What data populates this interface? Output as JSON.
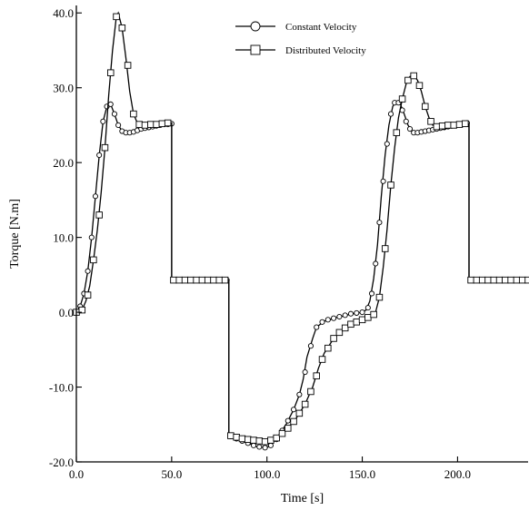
{
  "chart_data": {
    "type": "line",
    "title": "",
    "xlabel": "Time [s]",
    "ylabel": "Torque [N.m]",
    "xlim": [
      0,
      237
    ],
    "ylim": [
      -20,
      41
    ],
    "x_ticks": [
      0,
      50,
      100,
      150,
      200
    ],
    "x_tick_labels": [
      "0.0",
      "50.0",
      "100.0",
      "150.0",
      "200.0"
    ],
    "y_ticks": [
      -20,
      -10,
      0,
      10,
      20,
      30,
      40
    ],
    "y_tick_labels": [
      "-20.0",
      "-10.0",
      "0.0",
      "10.0",
      "20.0",
      "30.0",
      "40.0"
    ],
    "grid": false,
    "legend_position": "top-right",
    "series": [
      {
        "name": "Constant Velocity",
        "marker": "circle",
        "line": [
          [
            0,
            0
          ],
          [
            2,
            0.8
          ],
          [
            4,
            2.5
          ],
          [
            6,
            5.5
          ],
          [
            8,
            10
          ],
          [
            10,
            15.5
          ],
          [
            12,
            21
          ],
          [
            14,
            25.5
          ],
          [
            16,
            27.5
          ],
          [
            17,
            28
          ],
          [
            18,
            27.8
          ],
          [
            20,
            26.5
          ],
          [
            22,
            25
          ],
          [
            24,
            24.2
          ],
          [
            26,
            24
          ],
          [
            30,
            24.1
          ],
          [
            35,
            24.5
          ],
          [
            40,
            24.8
          ],
          [
            45,
            25
          ],
          [
            50,
            25.2
          ],
          [
            50,
            4.3
          ],
          [
            80,
            4.3
          ],
          [
            80,
            -16.5
          ],
          [
            85,
            -17
          ],
          [
            90,
            -17.5
          ],
          [
            95,
            -18
          ],
          [
            100,
            -18.1
          ],
          [
            103,
            -17.5
          ],
          [
            106,
            -16.5
          ],
          [
            110,
            -15
          ],
          [
            114,
            -13
          ],
          [
            117,
            -11
          ],
          [
            119,
            -9
          ],
          [
            121,
            -6
          ],
          [
            124,
            -3.5
          ],
          [
            126,
            -2
          ],
          [
            130,
            -1.2
          ],
          [
            135,
            -0.8
          ],
          [
            140,
            -0.5
          ],
          [
            145,
            -0.2
          ],
          [
            150,
            0
          ],
          [
            152,
            0.3
          ],
          [
            154,
            1.5
          ],
          [
            156,
            4.5
          ],
          [
            158,
            9
          ],
          [
            160,
            15.5
          ],
          [
            162,
            21
          ],
          [
            164,
            25
          ],
          [
            166,
            27.5
          ],
          [
            168,
            28.2
          ],
          [
            170,
            27.8
          ],
          [
            172,
            26.5
          ],
          [
            174,
            25
          ],
          [
            176,
            24.2
          ],
          [
            178,
            24
          ],
          [
            182,
            24.1
          ],
          [
            190,
            24.6
          ],
          [
            200,
            25.1
          ],
          [
            206,
            25.3
          ],
          [
            206,
            4.3
          ],
          [
            237,
            4.3
          ]
        ],
        "markers": [
          [
            0,
            0
          ],
          [
            2,
            0.8
          ],
          [
            4,
            2.5
          ],
          [
            6,
            5.5
          ],
          [
            8,
            10
          ],
          [
            10,
            15.5
          ],
          [
            12,
            21
          ],
          [
            14,
            25.5
          ],
          [
            16,
            27.5
          ],
          [
            18,
            27.8
          ],
          [
            20,
            26.5
          ],
          [
            22,
            25
          ],
          [
            24,
            24.2
          ],
          [
            26,
            24
          ],
          [
            28,
            24
          ],
          [
            30,
            24.1
          ],
          [
            32,
            24.3
          ],
          [
            34,
            24.5
          ],
          [
            36,
            24.6
          ],
          [
            38,
            24.7
          ],
          [
            40,
            24.8
          ],
          [
            42,
            24.9
          ],
          [
            44,
            25
          ],
          [
            46,
            25.1
          ],
          [
            48,
            25.1
          ],
          [
            50,
            25.2
          ],
          [
            51,
            4.3
          ],
          [
            53,
            4.3
          ],
          [
            55,
            4.3
          ],
          [
            57,
            4.3
          ],
          [
            59,
            4.3
          ],
          [
            61,
            4.3
          ],
          [
            63,
            4.3
          ],
          [
            65,
            4.3
          ],
          [
            67,
            4.3
          ],
          [
            69,
            4.3
          ],
          [
            71,
            4.3
          ],
          [
            73,
            4.3
          ],
          [
            75,
            4.3
          ],
          [
            77,
            4.3
          ],
          [
            79,
            4.3
          ],
          [
            81,
            -16.6
          ],
          [
            84,
            -16.9
          ],
          [
            87,
            -17.2
          ],
          [
            90,
            -17.5
          ],
          [
            93,
            -17.8
          ],
          [
            96,
            -18
          ],
          [
            99,
            -18.1
          ],
          [
            102,
            -17.8
          ],
          [
            105,
            -17
          ],
          [
            108,
            -15.8
          ],
          [
            111,
            -14.5
          ],
          [
            114,
            -13
          ],
          [
            117,
            -11
          ],
          [
            120,
            -8
          ],
          [
            123,
            -4.5
          ],
          [
            126,
            -2
          ],
          [
            129,
            -1.3
          ],
          [
            132,
            -1
          ],
          [
            135,
            -0.8
          ],
          [
            138,
            -0.6
          ],
          [
            141,
            -0.4
          ],
          [
            144,
            -0.2
          ],
          [
            147,
            -0.1
          ],
          [
            150,
            0
          ],
          [
            153,
            0.6
          ],
          [
            155,
            2.5
          ],
          [
            157,
            6.5
          ],
          [
            159,
            12
          ],
          [
            161,
            17.5
          ],
          [
            163,
            22.5
          ],
          [
            165,
            26.5
          ],
          [
            167,
            28
          ],
          [
            169,
            28
          ],
          [
            171,
            27
          ],
          [
            173,
            25.5
          ],
          [
            175,
            24.5
          ],
          [
            177,
            24
          ],
          [
            179,
            24
          ],
          [
            181,
            24.1
          ],
          [
            183,
            24.2
          ],
          [
            185,
            24.3
          ],
          [
            187,
            24.4
          ],
          [
            189,
            24.5
          ],
          [
            191,
            24.6
          ],
          [
            193,
            24.7
          ],
          [
            195,
            24.8
          ],
          [
            197,
            24.9
          ],
          [
            199,
            25
          ],
          [
            201,
            25.1
          ],
          [
            203,
            25.2
          ],
          [
            205,
            25.3
          ],
          [
            207,
            4.3
          ],
          [
            209,
            4.3
          ],
          [
            211,
            4.3
          ],
          [
            213,
            4.3
          ],
          [
            215,
            4.3
          ],
          [
            217,
            4.3
          ],
          [
            219,
            4.3
          ],
          [
            221,
            4.3
          ],
          [
            223,
            4.3
          ],
          [
            225,
            4.3
          ],
          [
            227,
            4.3
          ],
          [
            229,
            4.3
          ],
          [
            231,
            4.3
          ],
          [
            233,
            4.3
          ],
          [
            235,
            4.3
          ]
        ]
      },
      {
        "name": "Distributed Velocity",
        "marker": "square",
        "line": [
          [
            0,
            0
          ],
          [
            3,
            0.3
          ],
          [
            5,
            1.5
          ],
          [
            7,
            3.5
          ],
          [
            9,
            7
          ],
          [
            11,
            11
          ],
          [
            13,
            16
          ],
          [
            15,
            22
          ],
          [
            17,
            29
          ],
          [
            19,
            35
          ],
          [
            21,
            39.5
          ],
          [
            22,
            40
          ],
          [
            24,
            38
          ],
          [
            26,
            34
          ],
          [
            28,
            29.5
          ],
          [
            30,
            26.5
          ],
          [
            32,
            25.3
          ],
          [
            35,
            25
          ],
          [
            40,
            25.1
          ],
          [
            45,
            25.2
          ],
          [
            50,
            25.3
          ],
          [
            50,
            4.3
          ],
          [
            80,
            4.3
          ],
          [
            80,
            -16.5
          ],
          [
            85,
            -16.7
          ],
          [
            90,
            -17
          ],
          [
            95,
            -17.2
          ],
          [
            100,
            -17.3
          ],
          [
            105,
            -16.8
          ],
          [
            110,
            -15.8
          ],
          [
            115,
            -14.3
          ],
          [
            120,
            -12.3
          ],
          [
            124,
            -10
          ],
          [
            127,
            -7.5
          ],
          [
            130,
            -5.5
          ],
          [
            135,
            -3.5
          ],
          [
            140,
            -2.3
          ],
          [
            145,
            -1.5
          ],
          [
            150,
            -1
          ],
          [
            155,
            -0.5
          ],
          [
            157,
            0
          ],
          [
            159,
            2
          ],
          [
            161,
            6
          ],
          [
            163,
            11
          ],
          [
            165,
            17
          ],
          [
            167,
            22
          ],
          [
            169,
            26
          ],
          [
            171,
            28.5
          ],
          [
            173,
            30.5
          ],
          [
            175,
            31.5
          ],
          [
            177,
            31.6
          ],
          [
            179,
            31
          ],
          [
            181,
            29.5
          ],
          [
            183,
            27.5
          ],
          [
            185,
            26
          ],
          [
            187,
            25
          ],
          [
            190,
            24.8
          ],
          [
            195,
            25
          ],
          [
            200,
            25.1
          ],
          [
            206,
            25.2
          ],
          [
            206,
            4.3
          ],
          [
            237,
            4.3
          ]
        ],
        "markers": [
          [
            0,
            0
          ],
          [
            3,
            0.3
          ],
          [
            6,
            2.3
          ],
          [
            9,
            7
          ],
          [
            12,
            13
          ],
          [
            15,
            22
          ],
          [
            18,
            32
          ],
          [
            21,
            39.5
          ],
          [
            24,
            38
          ],
          [
            27,
            33
          ],
          [
            30,
            26.5
          ],
          [
            33,
            25.1
          ],
          [
            36,
            25
          ],
          [
            39,
            25.1
          ],
          [
            42,
            25.1
          ],
          [
            45,
            25.2
          ],
          [
            48,
            25.3
          ],
          [
            51,
            4.3
          ],
          [
            54,
            4.3
          ],
          [
            57,
            4.3
          ],
          [
            60,
            4.3
          ],
          [
            63,
            4.3
          ],
          [
            66,
            4.3
          ],
          [
            69,
            4.3
          ],
          [
            72,
            4.3
          ],
          [
            75,
            4.3
          ],
          [
            78,
            4.3
          ],
          [
            81,
            -16.5
          ],
          [
            84,
            -16.7
          ],
          [
            87,
            -16.9
          ],
          [
            90,
            -17
          ],
          [
            93,
            -17.1
          ],
          [
            96,
            -17.2
          ],
          [
            99,
            -17.3
          ],
          [
            102,
            -17.1
          ],
          [
            105,
            -16.8
          ],
          [
            108,
            -16.2
          ],
          [
            111,
            -15.5
          ],
          [
            114,
            -14.6
          ],
          [
            117,
            -13.5
          ],
          [
            120,
            -12.3
          ],
          [
            123,
            -10.6
          ],
          [
            126,
            -8.5
          ],
          [
            129,
            -6.3
          ],
          [
            132,
            -4.8
          ],
          [
            135,
            -3.5
          ],
          [
            138,
            -2.7
          ],
          [
            141,
            -2.1
          ],
          [
            144,
            -1.6
          ],
          [
            147,
            -1.3
          ],
          [
            150,
            -1
          ],
          [
            153,
            -0.7
          ],
          [
            156,
            -0.3
          ],
          [
            159,
            2
          ],
          [
            162,
            8.5
          ],
          [
            165,
            17
          ],
          [
            168,
            24
          ],
          [
            171,
            28.5
          ],
          [
            174,
            31
          ],
          [
            177,
            31.6
          ],
          [
            180,
            30.3
          ],
          [
            183,
            27.5
          ],
          [
            186,
            25.5
          ],
          [
            189,
            24.8
          ],
          [
            192,
            24.9
          ],
          [
            195,
            25
          ],
          [
            198,
            25
          ],
          [
            201,
            25.1
          ],
          [
            204,
            25.2
          ],
          [
            207,
            4.3
          ],
          [
            210,
            4.3
          ],
          [
            213,
            4.3
          ],
          [
            216,
            4.3
          ],
          [
            219,
            4.3
          ],
          [
            222,
            4.3
          ],
          [
            225,
            4.3
          ],
          [
            228,
            4.3
          ],
          [
            231,
            4.3
          ],
          [
            234,
            4.3
          ],
          [
            237,
            4.3
          ]
        ]
      }
    ]
  }
}
